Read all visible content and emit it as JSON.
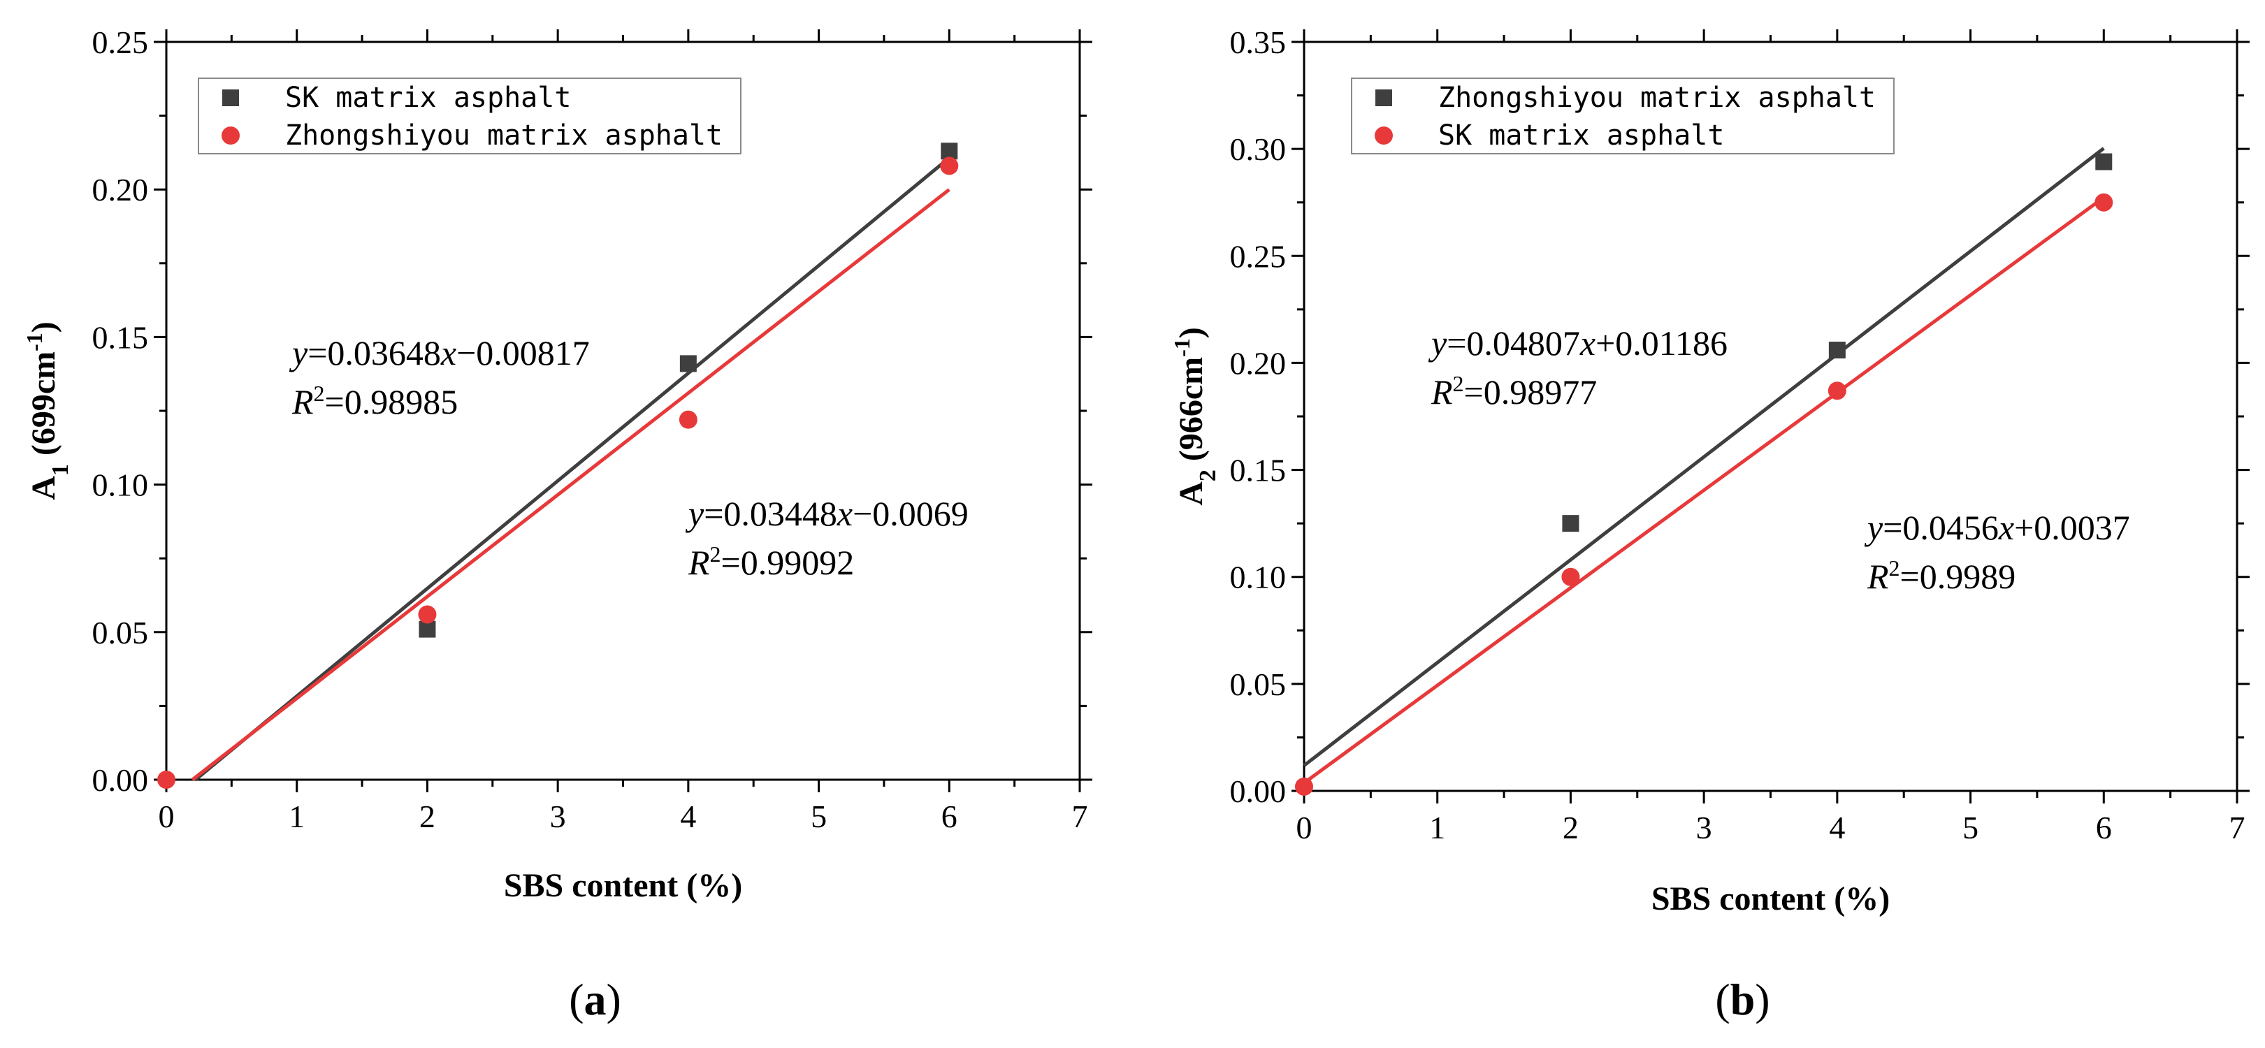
{
  "chart_data": [
    {
      "type": "scatter",
      "panel_label": "a",
      "xlabel": "SBS content (%)",
      "ylabel": {
        "main": "A",
        "sub": "1",
        "rest": " (699cm",
        "sup": "-1",
        "end": ")"
      },
      "xlim": [
        0,
        7
      ],
      "ylim": [
        0,
        0.25
      ],
      "xticks": [
        0,
        1,
        2,
        3,
        4,
        5,
        6,
        7
      ],
      "yticks": [
        0,
        0.05,
        0.1,
        0.15,
        0.2,
        0.25
      ],
      "ytick_labels": [
        "0.00",
        "0.05",
        "0.10",
        "0.15",
        "0.20",
        "0.25"
      ],
      "legend_position": "top-left",
      "series": [
        {
          "name": "SK matrix asphalt",
          "marker": "square",
          "color": "#3f3f3f",
          "x": [
            2,
            4,
            6
          ],
          "y": [
            0.051,
            0.141,
            0.213
          ],
          "fit": {
            "slope": 0.03648,
            "intercept": -0.00817,
            "x_range": [
              0.22,
              6
            ]
          },
          "equation": {
            "y": "y",
            "mid": "=0.03648",
            "x": "x",
            "end": "−0.00817"
          },
          "r2": {
            "r": "R",
            "sup": "2",
            "val": "=0.98985"
          }
        },
        {
          "name": "Zhongshiyou matrix asphalt",
          "marker": "circle",
          "color": "#e8393a",
          "x": [
            0,
            2,
            4,
            6
          ],
          "y": [
            0.0,
            0.056,
            0.122,
            0.208
          ],
          "fit": {
            "slope": 0.03448,
            "intercept": -0.0069,
            "x_range": [
              0.2,
              6
            ]
          },
          "equation": {
            "y": "y",
            "mid": "=0.03448",
            "x": "x",
            "end": "−0.0069"
          },
          "r2": {
            "r": "R",
            "sup": "2",
            "val": "=0.99092"
          }
        }
      ]
    },
    {
      "type": "scatter",
      "panel_label": "b",
      "xlabel": "SBS content (%)",
      "ylabel": {
        "main": "A",
        "sub": "2",
        "rest": " (966cm",
        "sup": "-1",
        "end": ")"
      },
      "xlim": [
        0,
        7
      ],
      "ylim": [
        0,
        0.35
      ],
      "xticks": [
        0,
        1,
        2,
        3,
        4,
        5,
        6,
        7
      ],
      "yticks": [
        0,
        0.05,
        0.1,
        0.15,
        0.2,
        0.25,
        0.3,
        0.35
      ],
      "ytick_labels": [
        "0.00",
        "0.05",
        "0.10",
        "0.15",
        "0.20",
        "0.25",
        "0.30",
        "0.35"
      ],
      "legend_position": "top-left",
      "series": [
        {
          "name": "Zhongshiyou matrix asphalt",
          "marker": "square",
          "color": "#3f3f3f",
          "x": [
            2,
            4,
            6
          ],
          "y": [
            0.125,
            0.206,
            0.294
          ],
          "fit": {
            "slope": 0.04807,
            "intercept": 0.01186,
            "x_range": [
              0,
              6
            ]
          },
          "equation": {
            "y": "y",
            "mid": "=0.04807",
            "x": "x",
            "end": "+0.01186"
          },
          "r2": {
            "r": "R",
            "sup": "2",
            "val": "=0.98977"
          }
        },
        {
          "name": "SK matrix asphalt",
          "marker": "circle",
          "color": "#e8393a",
          "x": [
            0,
            2,
            4,
            6
          ],
          "y": [
            0.002,
            0.1,
            0.187,
            0.275
          ],
          "fit": {
            "slope": 0.0456,
            "intercept": 0.0037,
            "x_range": [
              0,
              6
            ]
          },
          "equation": {
            "y": "y",
            "mid": "=0.0456",
            "x": "x",
            "end": "+0.0037"
          },
          "r2": {
            "r": "R",
            "sup": "2",
            "val": "=0.9989"
          }
        }
      ]
    }
  ]
}
